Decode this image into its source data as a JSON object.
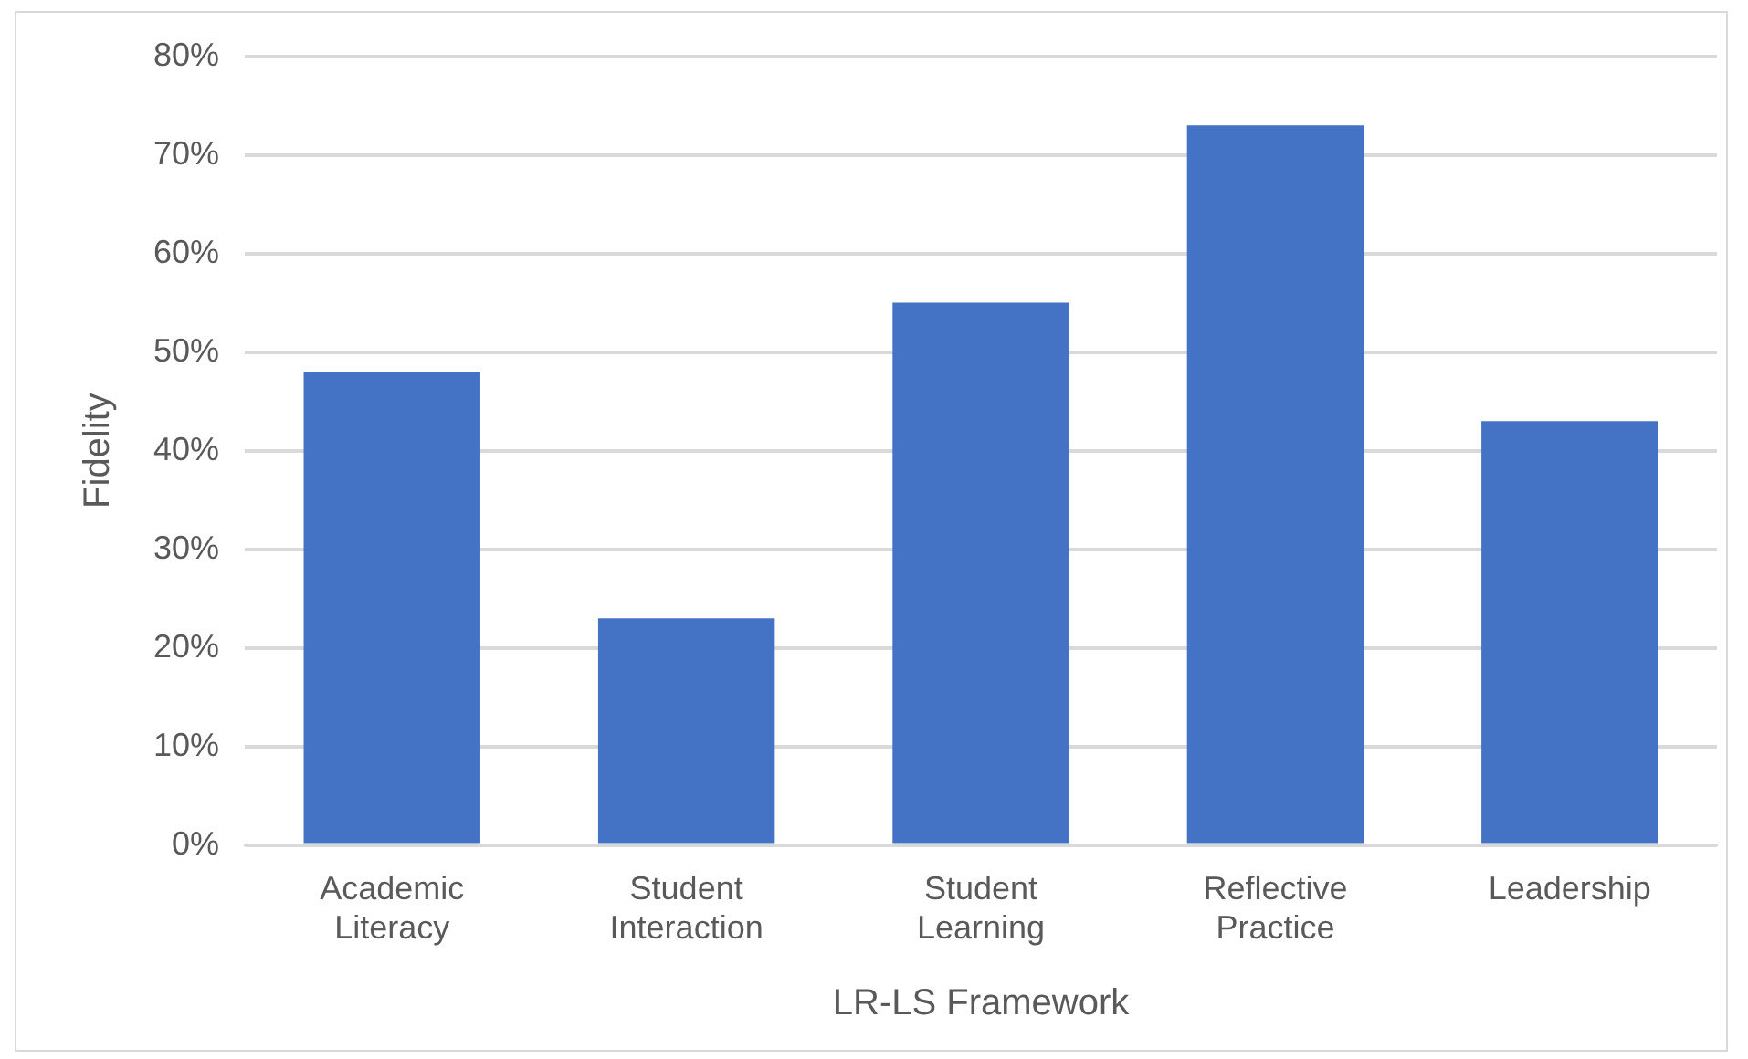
{
  "chart_data": {
    "type": "bar",
    "xlabel": "LR-LS Framework",
    "ylabel": "Fidelity",
    "categories": [
      "Academic Literacy",
      "Student Interaction",
      "Student Learning",
      "Reflective Practice",
      "Leadership"
    ],
    "values": [
      48,
      23,
      55,
      73,
      43
    ],
    "color": "#4472c4",
    "ylim": [
      0,
      80
    ],
    "yticks": [
      {
        "value": 0,
        "label": "0%"
      },
      {
        "value": 10,
        "label": "10%"
      },
      {
        "value": 20,
        "label": "20%"
      },
      {
        "value": 30,
        "label": "30%"
      },
      {
        "value": 40,
        "label": "40%"
      },
      {
        "value": 50,
        "label": "50%"
      },
      {
        "value": 60,
        "label": "60%"
      },
      {
        "value": 70,
        "label": "70%"
      },
      {
        "value": 80,
        "label": "80%"
      }
    ],
    "grid": "y"
  }
}
